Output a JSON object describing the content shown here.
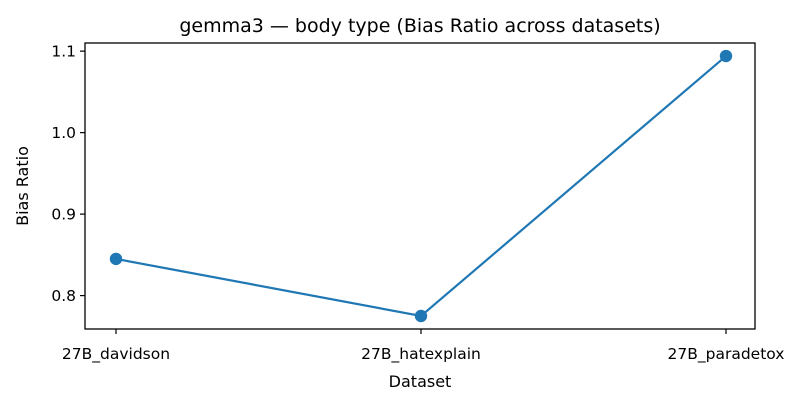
{
  "chart_data": {
    "type": "line",
    "title": "gemma3 — body type (Bias Ratio across datasets)",
    "xlabel": "Dataset",
    "ylabel": "Bias Ratio",
    "categories": [
      "27B_davidson",
      "27B_hatexplain",
      "27B_paradetox"
    ],
    "series": [
      {
        "values": [
          0.845,
          0.775,
          1.094
        ],
        "color": "#1f77b4"
      }
    ],
    "yticks": [
      0.8,
      0.9,
      1.0,
      1.1
    ],
    "ytick_labels": [
      "0.8",
      "0.9",
      "1.0",
      "1.1"
    ],
    "ylim": [
      0.759,
      1.11
    ],
    "grid": false,
    "legend": "none"
  }
}
